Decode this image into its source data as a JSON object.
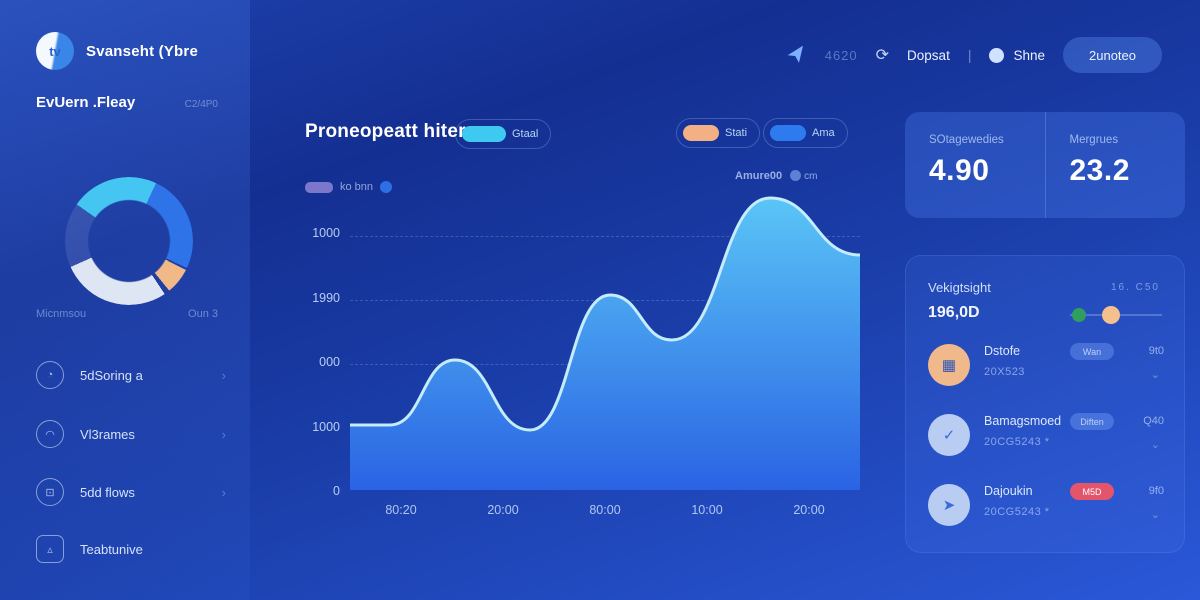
{
  "header": {
    "stat": "4620",
    "refresh_glyph": "⟳",
    "deposit_label": "Dopsat",
    "divider": "|",
    "share_label": "Shne",
    "cta_label": "2unoteo"
  },
  "sidebar": {
    "brand": "Svanseht (Ybre",
    "brand_glyph": "tv",
    "user_name": "EvUern .Fleay",
    "user_meta": "C2/4P0",
    "donut_label": "Micnmsou",
    "donut_value": "Oun 3",
    "items": [
      {
        "label": "5dSoring a",
        "glyph": "◔",
        "chevron": "›"
      },
      {
        "label": "Vl3rames",
        "glyph": "◠",
        "chevron": "›"
      },
      {
        "label": "5dd flows",
        "glyph": "⊡",
        "chevron": "›"
      },
      {
        "label": "Teabtunive",
        "glyph": "▵",
        "chevron": ""
      }
    ]
  },
  "main": {
    "title": "Proneopeatt hiter",
    "toggles": [
      {
        "label": "Gtaal",
        "color": "#3ec9f0"
      },
      {
        "label": "Stati",
        "color": "#f2b084"
      },
      {
        "label": "Ama",
        "color": "#2e7bf0"
      }
    ],
    "legend": {
      "label": "ko bnn",
      "swatch_color": "#8d85d6",
      "dot_color": "#2f6fe4"
    },
    "annotation": {
      "text": "Amure00",
      "badge": "cm"
    }
  },
  "chart_data": [
    {
      "type": "area",
      "title": "Proneopeatt hiter",
      "xlabel": "",
      "ylabel": "",
      "x_tick_labels": [
        "80:20",
        "20:00",
        "80:00",
        "10:00",
        "20:00"
      ],
      "y_tick_labels": [
        "1000",
        "1990",
        "000",
        "1000",
        "0"
      ],
      "ylim": [
        0,
        300
      ],
      "x_range": [
        0,
        510
      ],
      "grid": "dashed-horizontal",
      "legend_position": "top-left",
      "fill_top": "#5ac5f6",
      "fill_bottom": "#2a63e4",
      "stroke": "#c4ecfd",
      "points": [
        {
          "x": 0,
          "v": 65
        },
        {
          "x": 40,
          "v": 65
        },
        {
          "x": 105,
          "v": 130
        },
        {
          "x": 180,
          "v": 60
        },
        {
          "x": 260,
          "v": 195
        },
        {
          "x": 322,
          "v": 150
        },
        {
          "x": 420,
          "v": 292
        },
        {
          "x": 510,
          "v": 235
        }
      ]
    },
    {
      "type": "donut",
      "segments": [
        {
          "label": "cyan",
          "color": "#45c6f2",
          "start": -55,
          "end": 25
        },
        {
          "label": "blue",
          "color": "#2e73e8",
          "start": 25,
          "end": 115
        },
        {
          "label": "orange",
          "color": "#f2b988",
          "start": 117,
          "end": 141
        },
        {
          "label": "light",
          "color": "#dde6f2",
          "start": 146,
          "end": 246
        },
        {
          "label": "muted",
          "color": "rgba(255,255,255,0.10)",
          "start": 246,
          "end": 305
        }
      ]
    }
  ],
  "right": {
    "stats": [
      {
        "label": "SOtagewedies",
        "value": "4.90"
      },
      {
        "label": "Mergrues",
        "value": "23.2"
      }
    ],
    "summary": {
      "title": "Vekigtsight",
      "meta": "16.  C50",
      "value": "196,0D",
      "dot_a_color": "#2f9e5f",
      "dot_b_color": "#f4c08e"
    },
    "rows": [
      {
        "title": "Dstofe",
        "subtitle": "20X523",
        "pill": "Wan",
        "pill_type": "light",
        "value": "9t0",
        "chevron": "⌄",
        "avatar_color": "#f0b98c",
        "glyph": "▦",
        "glyph_color": "#2a55b8"
      },
      {
        "title": "Bamagsmoed",
        "subtitle": "20CG5243 *",
        "pill": "Diften",
        "pill_type": "light",
        "value": "Q40",
        "chevron": "⌄",
        "avatar_color": "#b9cdf2",
        "glyph": "✓",
        "glyph_color": "#3a6cd8"
      },
      {
        "title": "Dajoukin",
        "subtitle": "20CG5243 *",
        "pill": "M5D",
        "pill_type": "danger",
        "value": "9f0",
        "chevron": "⌄",
        "avatar_color": "#b9cdf2",
        "glyph": "➤",
        "glyph_color": "#3a6cd8"
      }
    ]
  }
}
